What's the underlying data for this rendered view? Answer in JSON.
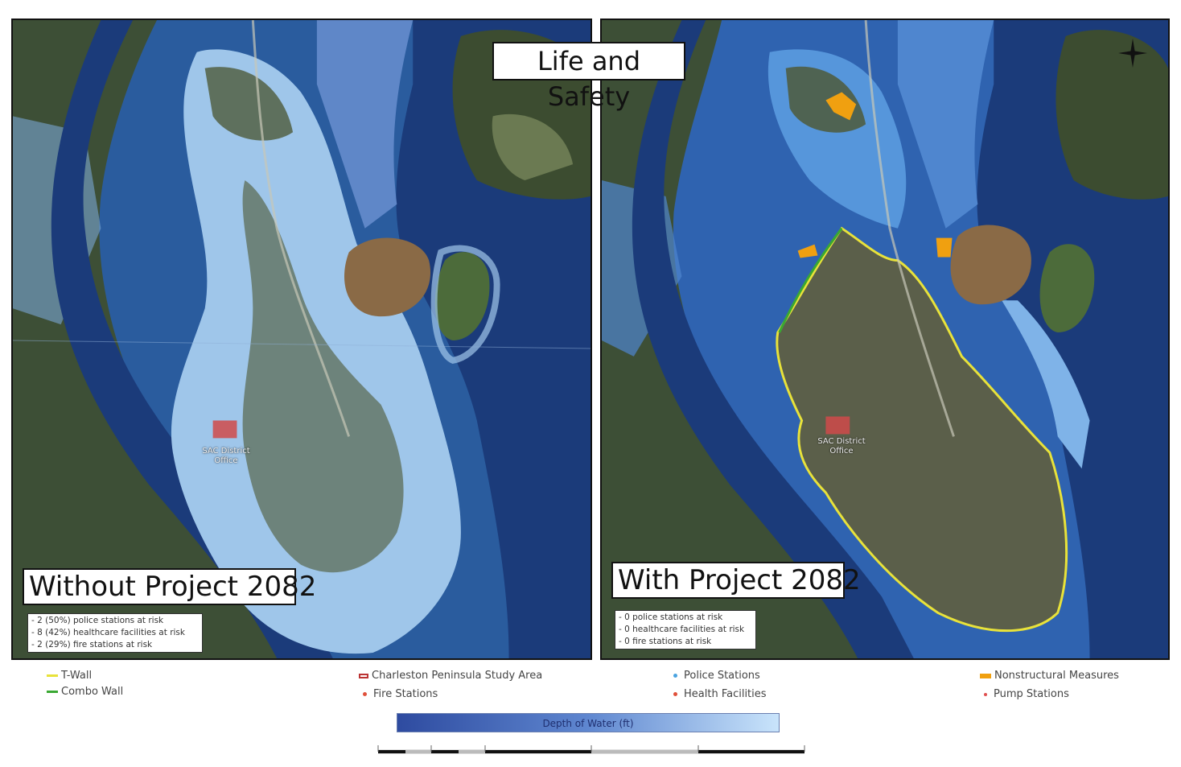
{
  "title": "Life and Safety",
  "panels": [
    {
      "scenario": "Without Project 2082",
      "stats": [
        "- 2 (50%) police stations at risk",
        "- 8 (42%) healthcare facilities at risk",
        "- 2 (29%) fire stations at risk"
      ],
      "office_label_line1": "SAC District",
      "office_label_line2": "Office"
    },
    {
      "scenario": "With Project 2082",
      "stats": [
        "- 0 police stations at risk",
        "- 0 healthcare facilities at risk",
        "- 0 fire stations at risk"
      ],
      "office_label_line1": "SAC District",
      "office_label_line2": "Office"
    }
  ],
  "legend": {
    "t_wall": {
      "label": "T-Wall",
      "color": "#e8e23a"
    },
    "combo_wall": {
      "label": "Combo Wall",
      "color": "#3aa832"
    },
    "study_area": {
      "label": "Charleston Peninsula Study Area",
      "color": "#b33333"
    },
    "fire_stations": {
      "label": "Fire Stations",
      "color": "#e0503a"
    },
    "police_stations": {
      "label": "Police Stations",
      "color": "#4aa3e0"
    },
    "health_facilities": {
      "label": "Health Facilities",
      "color": "#e0503a"
    },
    "nonstructural": {
      "label": "Nonstructural Measures",
      "color": "#f0a010"
    },
    "pump_stations": {
      "label": "Pump Stations",
      "color": "#e05050"
    }
  },
  "depth_legend": {
    "label": "Depth of Water (ft)",
    "color_deep": "#2e4ba0",
    "color_shallow": "#c9e4fb"
  },
  "colors": {
    "deep_water": "#1b3b7a",
    "flood_shallow": "#9fc6ea",
    "land": "#4a5a3a",
    "marsh": "#8a6a46"
  }
}
